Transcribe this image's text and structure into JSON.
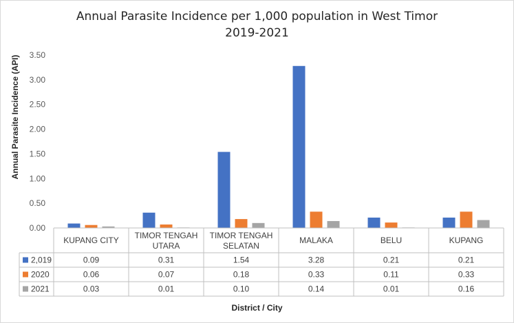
{
  "chart_data": {
    "type": "bar",
    "title_line1": "Annual Parasite Incidence per 1,000 population in West Timor",
    "title_line2": "2019-2021",
    "ylabel": "Annual Parasite Incidence (API)",
    "xlabel": "District / City",
    "ylim": [
      0,
      3.5
    ],
    "yticks": [
      "0.00",
      "0.50",
      "1.00",
      "1.50",
      "2.00",
      "2.50",
      "3.00",
      "3.50"
    ],
    "categories": [
      [
        "KUPANG CITY"
      ],
      [
        "TIMOR TENGAH",
        "UTARA"
      ],
      [
        "TIMOR TENGAH",
        "SELATAN"
      ],
      [
        "MALAKA"
      ],
      [
        "BELU"
      ],
      [
        "KUPANG"
      ]
    ],
    "series": [
      {
        "name": "2,019",
        "color": "#4472c4",
        "values": [
          0.09,
          0.31,
          1.54,
          3.28,
          0.21,
          0.21
        ],
        "labels": [
          "0.09",
          "0.31",
          "1.54",
          "3.28",
          "0.21",
          "0.21"
        ]
      },
      {
        "name": "2020",
        "color": "#ed7d31",
        "values": [
          0.06,
          0.07,
          0.18,
          0.33,
          0.11,
          0.33
        ],
        "labels": [
          "0.06",
          "0.07",
          "0.18",
          "0.33",
          "0.11",
          "0.33"
        ]
      },
      {
        "name": "2021",
        "color": "#a5a5a5",
        "values": [
          0.03,
          0.01,
          0.1,
          0.14,
          0.01,
          0.16
        ],
        "labels": [
          "0.03",
          "0.01",
          "0.10",
          "0.14",
          "0.01",
          "0.16"
        ]
      }
    ],
    "grid": false,
    "legend": "data table"
  }
}
